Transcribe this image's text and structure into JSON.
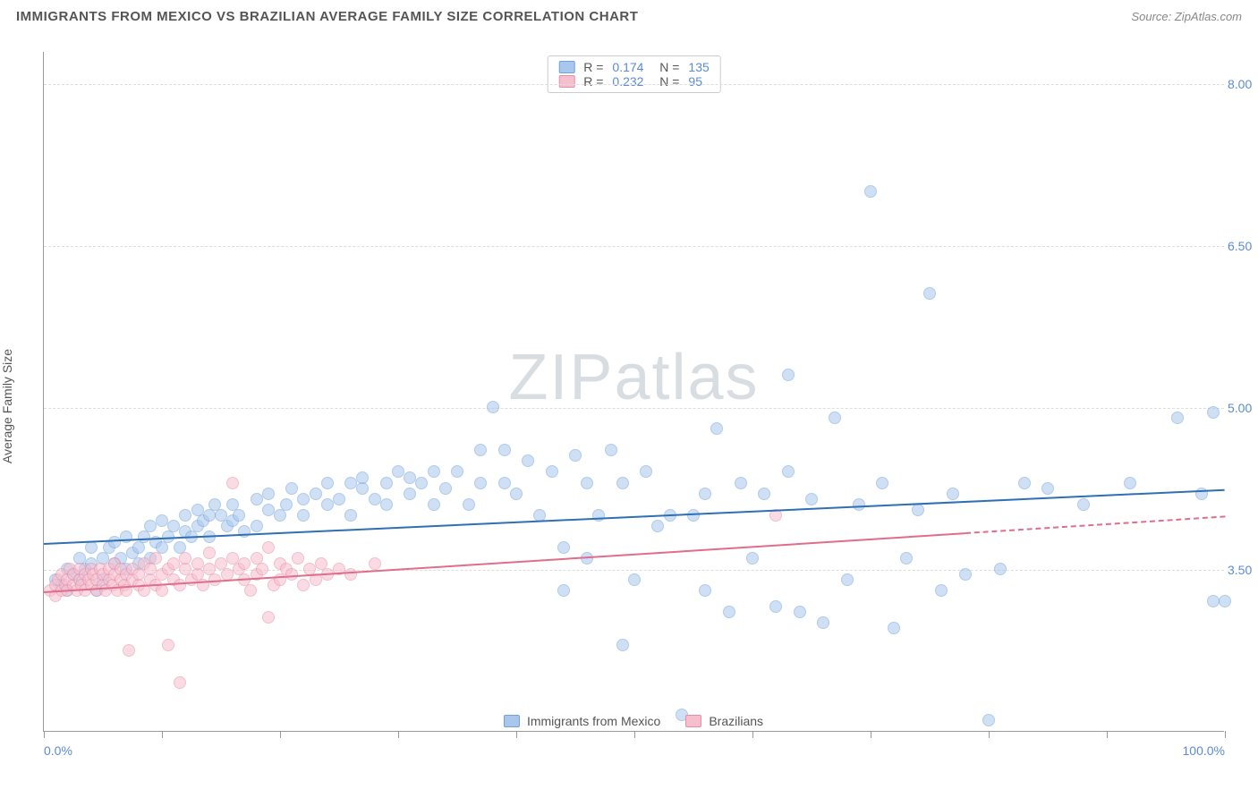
{
  "title": "IMMIGRANTS FROM MEXICO VS BRAZILIAN AVERAGE FAMILY SIZE CORRELATION CHART",
  "source": "Source: ZipAtlas.com",
  "ylabel": "Average Family Size",
  "watermark_a": "ZIP",
  "watermark_b": "atlas",
  "chart": {
    "type": "scatter",
    "background_color": "#ffffff",
    "grid_color": "#dddddd",
    "axis_color": "#999999",
    "marker_radius": 7,
    "marker_opacity": 0.55,
    "xlim": [
      0,
      100
    ],
    "ylim": [
      2.0,
      8.3
    ],
    "yticks": [
      3.5,
      5.0,
      6.5,
      8.0
    ],
    "xtick_positions": [
      0,
      10,
      20,
      30,
      40,
      50,
      60,
      70,
      80,
      90,
      100
    ],
    "xlabel_min": "0.0%",
    "xlabel_max": "100.0%",
    "tick_color": "#5b8bd4"
  },
  "legend_top": [
    {
      "fill": "#a9c7ec",
      "stroke": "#6fa1db",
      "r_label": "R =",
      "r": "0.174",
      "n_label": "N =",
      "n": "135"
    },
    {
      "fill": "#f6bfce",
      "stroke": "#e98ca7",
      "r_label": "R =",
      "r": "0.232",
      "n_label": "N =",
      "n": "95"
    }
  ],
  "legend_bottom": [
    {
      "fill": "#a9c7ec",
      "stroke": "#6fa1db",
      "label": "Immigrants from Mexico"
    },
    {
      "fill": "#f6bfce",
      "stroke": "#e98ca7",
      "label": "Brazilians"
    }
  ],
  "series": [
    {
      "name": "mexico",
      "fill": "#a9c7ec",
      "stroke": "#6fa1db",
      "trend_color": "#2f6fb6",
      "trend": {
        "x1": 0,
        "y1": 3.75,
        "x2": 100,
        "y2": 4.25,
        "solid_until_x": 100
      },
      "points": [
        [
          1,
          3.4
        ],
        [
          1.5,
          3.35
        ],
        [
          2,
          3.5
        ],
        [
          2,
          3.3
        ],
        [
          2.5,
          3.45
        ],
        [
          3,
          3.6
        ],
        [
          3,
          3.4
        ],
        [
          3.5,
          3.5
        ],
        [
          4,
          3.55
        ],
        [
          4,
          3.7
        ],
        [
          4.5,
          3.3
        ],
        [
          5,
          3.6
        ],
        [
          5,
          3.4
        ],
        [
          5.5,
          3.7
        ],
        [
          6,
          3.55
        ],
        [
          6,
          3.75
        ],
        [
          6.5,
          3.6
        ],
        [
          7,
          3.5
        ],
        [
          7,
          3.8
        ],
        [
          7.5,
          3.65
        ],
        [
          8,
          3.7
        ],
        [
          8,
          3.55
        ],
        [
          8.5,
          3.8
        ],
        [
          9,
          3.6
        ],
        [
          9,
          3.9
        ],
        [
          9.5,
          3.75
        ],
        [
          10,
          3.7
        ],
        [
          10,
          3.95
        ],
        [
          10.5,
          3.8
        ],
        [
          11,
          3.9
        ],
        [
          11.5,
          3.7
        ],
        [
          12,
          4.0
        ],
        [
          12,
          3.85
        ],
        [
          12.5,
          3.8
        ],
        [
          13,
          4.05
        ],
        [
          13,
          3.9
        ],
        [
          13.5,
          3.95
        ],
        [
          14,
          4.0
        ],
        [
          14,
          3.8
        ],
        [
          14.5,
          4.1
        ],
        [
          15,
          4.0
        ],
        [
          15.5,
          3.9
        ],
        [
          16,
          4.1
        ],
        [
          16,
          3.95
        ],
        [
          16.5,
          4.0
        ],
        [
          17,
          3.85
        ],
        [
          18,
          4.15
        ],
        [
          18,
          3.9
        ],
        [
          19,
          4.05
        ],
        [
          19,
          4.2
        ],
        [
          20,
          4.0
        ],
        [
          20.5,
          4.1
        ],
        [
          21,
          4.25
        ],
        [
          22,
          4.15
        ],
        [
          22,
          4.0
        ],
        [
          23,
          4.2
        ],
        [
          24,
          4.1
        ],
        [
          24,
          4.3
        ],
        [
          25,
          4.15
        ],
        [
          26,
          4.3
        ],
        [
          26,
          4.0
        ],
        [
          27,
          4.25
        ],
        [
          27,
          4.35
        ],
        [
          28,
          4.15
        ],
        [
          29,
          4.3
        ],
        [
          29,
          4.1
        ],
        [
          30,
          4.4
        ],
        [
          31,
          4.2
        ],
        [
          31,
          4.35
        ],
        [
          32,
          4.3
        ],
        [
          33,
          4.1
        ],
        [
          33,
          4.4
        ],
        [
          34,
          4.25
        ],
        [
          35,
          4.4
        ],
        [
          36,
          4.1
        ],
        [
          37,
          4.6
        ],
        [
          37,
          4.3
        ],
        [
          38,
          5.0
        ],
        [
          39,
          4.3
        ],
        [
          39,
          4.6
        ],
        [
          40,
          4.2
        ],
        [
          41,
          4.5
        ],
        [
          42,
          4.0
        ],
        [
          43,
          4.4
        ],
        [
          44,
          3.7
        ],
        [
          44,
          3.3
        ],
        [
          45,
          4.55
        ],
        [
          46,
          3.6
        ],
        [
          46,
          4.3
        ],
        [
          47,
          4.0
        ],
        [
          48,
          4.6
        ],
        [
          49,
          2.8
        ],
        [
          49,
          4.3
        ],
        [
          50,
          3.4
        ],
        [
          51,
          4.4
        ],
        [
          52,
          3.9
        ],
        [
          53,
          4.0
        ],
        [
          54,
          2.15
        ],
        [
          55,
          4.0
        ],
        [
          56,
          4.2
        ],
        [
          56,
          3.3
        ],
        [
          57,
          4.8
        ],
        [
          58,
          3.1
        ],
        [
          59,
          4.3
        ],
        [
          60,
          3.6
        ],
        [
          61,
          4.2
        ],
        [
          62,
          3.15
        ],
        [
          63,
          5.3
        ],
        [
          63,
          4.4
        ],
        [
          64,
          3.1
        ],
        [
          65,
          4.15
        ],
        [
          66,
          3.0
        ],
        [
          67,
          4.9
        ],
        [
          68,
          3.4
        ],
        [
          69,
          4.1
        ],
        [
          70,
          7.0
        ],
        [
          71,
          4.3
        ],
        [
          72,
          2.95
        ],
        [
          73,
          3.6
        ],
        [
          74,
          4.05
        ],
        [
          75,
          6.05
        ],
        [
          76,
          3.3
        ],
        [
          77,
          4.2
        ],
        [
          78,
          3.45
        ],
        [
          80,
          2.1
        ],
        [
          81,
          3.5
        ],
        [
          83,
          4.3
        ],
        [
          85,
          4.25
        ],
        [
          88,
          4.1
        ],
        [
          92,
          4.3
        ],
        [
          96,
          4.9
        ],
        [
          98,
          4.2
        ],
        [
          99,
          3.2
        ],
        [
          99,
          4.95
        ],
        [
          100,
          3.2
        ]
      ]
    },
    {
      "name": "brazilians",
      "fill": "#f6bfce",
      "stroke": "#e98ca7",
      "trend_color": "#e06d8c",
      "trend": {
        "x1": 0,
        "y1": 3.3,
        "x2": 100,
        "y2": 4.0,
        "solid_until_x": 78
      },
      "points": [
        [
          0.5,
          3.3
        ],
        [
          1,
          3.35
        ],
        [
          1,
          3.25
        ],
        [
          1.2,
          3.4
        ],
        [
          1.5,
          3.3
        ],
        [
          1.5,
          3.45
        ],
        [
          1.8,
          3.35
        ],
        [
          2,
          3.4
        ],
        [
          2,
          3.3
        ],
        [
          2.2,
          3.5
        ],
        [
          2.5,
          3.35
        ],
        [
          2.5,
          3.45
        ],
        [
          2.8,
          3.3
        ],
        [
          3,
          3.4
        ],
        [
          3,
          3.5
        ],
        [
          3.2,
          3.35
        ],
        [
          3.5,
          3.45
        ],
        [
          3.5,
          3.3
        ],
        [
          3.8,
          3.4
        ],
        [
          4,
          3.5
        ],
        [
          4,
          3.35
        ],
        [
          4.2,
          3.45
        ],
        [
          4.5,
          3.3
        ],
        [
          4.5,
          3.4
        ],
        [
          4.8,
          3.5
        ],
        [
          5,
          3.35
        ],
        [
          5,
          3.45
        ],
        [
          5.2,
          3.3
        ],
        [
          5.5,
          3.4
        ],
        [
          5.5,
          3.5
        ],
        [
          5.8,
          3.35
        ],
        [
          6,
          3.45
        ],
        [
          6,
          3.55
        ],
        [
          6.2,
          3.3
        ],
        [
          6.5,
          3.4
        ],
        [
          6.5,
          3.5
        ],
        [
          6.8,
          3.35
        ],
        [
          7,
          3.45
        ],
        [
          7,
          3.3
        ],
        [
          7.2,
          2.75
        ],
        [
          7.5,
          3.4
        ],
        [
          7.5,
          3.5
        ],
        [
          8,
          3.35
        ],
        [
          8,
          3.45
        ],
        [
          8.5,
          3.3
        ],
        [
          8.5,
          3.55
        ],
        [
          9,
          3.4
        ],
        [
          9,
          3.5
        ],
        [
          9.5,
          3.35
        ],
        [
          9.5,
          3.6
        ],
        [
          10,
          3.45
        ],
        [
          10,
          3.3
        ],
        [
          10.5,
          2.8
        ],
        [
          10.5,
          3.5
        ],
        [
          11,
          3.4
        ],
        [
          11,
          3.55
        ],
        [
          11.5,
          3.35
        ],
        [
          11.5,
          2.45
        ],
        [
          12,
          3.5
        ],
        [
          12,
          3.6
        ],
        [
          12.5,
          3.4
        ],
        [
          13,
          3.45
        ],
        [
          13,
          3.55
        ],
        [
          13.5,
          3.35
        ],
        [
          14,
          3.65
        ],
        [
          14,
          3.5
        ],
        [
          14.5,
          3.4
        ],
        [
          15,
          3.55
        ],
        [
          15.5,
          3.45
        ],
        [
          16,
          3.6
        ],
        [
          16,
          4.3
        ],
        [
          16.5,
          3.5
        ],
        [
          17,
          3.4
        ],
        [
          17,
          3.55
        ],
        [
          17.5,
          3.3
        ],
        [
          18,
          3.45
        ],
        [
          18,
          3.6
        ],
        [
          18.5,
          3.5
        ],
        [
          19,
          3.7
        ],
        [
          19,
          3.05
        ],
        [
          19.5,
          3.35
        ],
        [
          20,
          3.55
        ],
        [
          20,
          3.4
        ],
        [
          20.5,
          3.5
        ],
        [
          21,
          3.45
        ],
        [
          21.5,
          3.6
        ],
        [
          22,
          3.35
        ],
        [
          22.5,
          3.5
        ],
        [
          23,
          3.4
        ],
        [
          23.5,
          3.55
        ],
        [
          24,
          3.45
        ],
        [
          25,
          3.5
        ],
        [
          26,
          3.45
        ],
        [
          28,
          3.55
        ],
        [
          62,
          4.0
        ]
      ]
    }
  ]
}
